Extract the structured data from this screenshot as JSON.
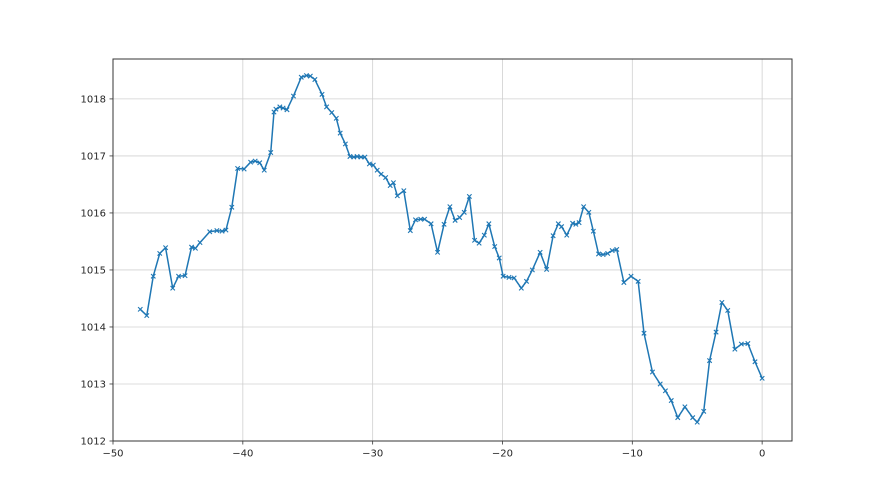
{
  "figure": {
    "background": "#ffffff"
  },
  "chart_data": {
    "type": "line",
    "grid": true,
    "legend": null,
    "title": "",
    "xlabel": "",
    "ylabel": "",
    "xlim": [
      -50,
      2.3
    ],
    "ylim": [
      1012,
      1018.7
    ],
    "x_ticks": {
      "values": [
        -50,
        -40,
        -30,
        -20,
        -10,
        0
      ],
      "labels": [
        "−50",
        "−40",
        "−30",
        "−20",
        "−10",
        "0"
      ]
    },
    "y_ticks": {
      "values": [
        1012,
        1013,
        1014,
        1015,
        1016,
        1017,
        1018
      ],
      "labels": [
        "1012",
        "1013",
        "1014",
        "1015",
        "1016",
        "1017",
        "1018"
      ]
    },
    "grid_color": "#d0d0d0",
    "spine_color": "#363636",
    "tick_color": "#363636",
    "label_color": "#262626",
    "series": [
      {
        "name": "pressure-trace",
        "color": "#1f77b4",
        "marker": "x",
        "points": [
          [
            -47.9,
            1014.31
          ],
          [
            -47.4,
            1014.2
          ],
          [
            -46.9,
            1014.89
          ],
          [
            -46.4,
            1015.29
          ],
          [
            -45.95,
            1015.39
          ],
          [
            -45.4,
            1014.68
          ],
          [
            -44.95,
            1014.89
          ],
          [
            -44.45,
            1014.9
          ],
          [
            -43.95,
            1015.4
          ],
          [
            -43.65,
            1015.38
          ],
          [
            -43.3,
            1015.48
          ],
          [
            -42.55,
            1015.67
          ],
          [
            -42.0,
            1015.69
          ],
          [
            -41.6,
            1015.68
          ],
          [
            -41.3,
            1015.7
          ],
          [
            -40.85,
            1016.1
          ],
          [
            -40.4,
            1016.78
          ],
          [
            -39.9,
            1016.77
          ],
          [
            -39.4,
            1016.89
          ],
          [
            -39.05,
            1016.91
          ],
          [
            -38.7,
            1016.88
          ],
          [
            -38.35,
            1016.75
          ],
          [
            -37.85,
            1017.06
          ],
          [
            -37.6,
            1017.77
          ],
          [
            -37.45,
            1017.82
          ],
          [
            -37.15,
            1017.86
          ],
          [
            -36.9,
            1017.84
          ],
          [
            -36.6,
            1017.81
          ],
          [
            -36.1,
            1018.05
          ],
          [
            -35.5,
            1018.38
          ],
          [
            -35.1,
            1018.41
          ],
          [
            -34.8,
            1018.4
          ],
          [
            -34.45,
            1018.34
          ],
          [
            -33.9,
            1018.08
          ],
          [
            -33.55,
            1017.86
          ],
          [
            -33.15,
            1017.76
          ],
          [
            -32.8,
            1017.66
          ],
          [
            -32.5,
            1017.4
          ],
          [
            -32.1,
            1017.21
          ],
          [
            -31.75,
            1016.99
          ],
          [
            -31.45,
            1016.98
          ],
          [
            -31.2,
            1016.99
          ],
          [
            -30.9,
            1016.98
          ],
          [
            -30.6,
            1016.98
          ],
          [
            -30.25,
            1016.86
          ],
          [
            -29.95,
            1016.84
          ],
          [
            -29.65,
            1016.75
          ],
          [
            -29.35,
            1016.68
          ],
          [
            -29.0,
            1016.62
          ],
          [
            -28.65,
            1016.48
          ],
          [
            -28.4,
            1016.53
          ],
          [
            -28.1,
            1016.3
          ],
          [
            -27.6,
            1016.39
          ],
          [
            -27.1,
            1015.69
          ],
          [
            -26.7,
            1015.88
          ],
          [
            -26.3,
            1015.89
          ],
          [
            -26.0,
            1015.89
          ],
          [
            -25.5,
            1015.81
          ],
          [
            -25.0,
            1015.31
          ],
          [
            -24.5,
            1015.8
          ],
          [
            -24.05,
            1016.11
          ],
          [
            -23.65,
            1015.87
          ],
          [
            -23.3,
            1015.92
          ],
          [
            -22.95,
            1016.01
          ],
          [
            -22.55,
            1016.29
          ],
          [
            -22.15,
            1015.52
          ],
          [
            -21.8,
            1015.47
          ],
          [
            -21.4,
            1015.61
          ],
          [
            -21.05,
            1015.81
          ],
          [
            -20.6,
            1015.41
          ],
          [
            -20.25,
            1015.21
          ],
          [
            -19.95,
            1014.89
          ],
          [
            -19.5,
            1014.87
          ],
          [
            -19.1,
            1014.86
          ],
          [
            -18.55,
            1014.68
          ],
          [
            -18.15,
            1014.8
          ],
          [
            -17.7,
            1015.0
          ],
          [
            -17.1,
            1015.31
          ],
          [
            -16.6,
            1015.01
          ],
          [
            -16.1,
            1015.6
          ],
          [
            -15.7,
            1015.81
          ],
          [
            -15.45,
            1015.76
          ],
          [
            -15.05,
            1015.61
          ],
          [
            -14.6,
            1015.82
          ],
          [
            -14.35,
            1015.8
          ],
          [
            -14.1,
            1015.83
          ],
          [
            -13.75,
            1016.11
          ],
          [
            -13.35,
            1016.01
          ],
          [
            -13.0,
            1015.68
          ],
          [
            -12.6,
            1015.28
          ],
          [
            -12.25,
            1015.27
          ],
          [
            -11.9,
            1015.29
          ],
          [
            -11.55,
            1015.34
          ],
          [
            -11.2,
            1015.36
          ],
          [
            -10.65,
            1014.78
          ],
          [
            -10.1,
            1014.89
          ],
          [
            -9.55,
            1014.8
          ],
          [
            -9.1,
            1013.89
          ],
          [
            -8.45,
            1013.21
          ],
          [
            -7.85,
            1013.0
          ],
          [
            -7.45,
            1012.88
          ],
          [
            -7.0,
            1012.71
          ],
          [
            -6.5,
            1012.41
          ],
          [
            -5.95,
            1012.6
          ],
          [
            -5.35,
            1012.41
          ],
          [
            -5.0,
            1012.33
          ],
          [
            -4.5,
            1012.52
          ],
          [
            -4.05,
            1013.41
          ],
          [
            -3.55,
            1013.91
          ],
          [
            -3.1,
            1014.43
          ],
          [
            -2.65,
            1014.29
          ],
          [
            -2.1,
            1013.61
          ],
          [
            -1.6,
            1013.7
          ],
          [
            -1.1,
            1013.71
          ],
          [
            -0.55,
            1013.39
          ],
          [
            0.0,
            1013.1
          ]
        ]
      }
    ]
  }
}
